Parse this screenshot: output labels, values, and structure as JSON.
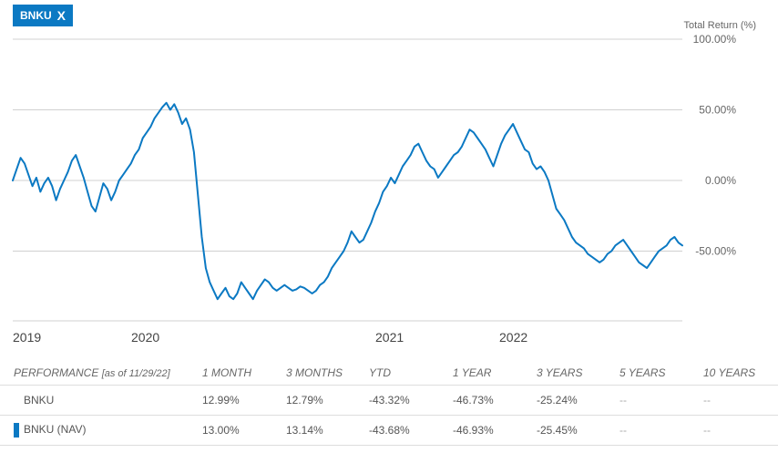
{
  "ticker": {
    "label": "BNKU",
    "close": "X"
  },
  "chart_data": {
    "type": "line",
    "ylabel": "Total Return (%)",
    "ylim": [
      -100,
      100
    ],
    "y_ticks": [
      {
        "value": 100,
        "label": "100.00%"
      },
      {
        "value": 50,
        "label": "50.00%"
      },
      {
        "value": 0,
        "label": "0.00%"
      },
      {
        "value": -50,
        "label": "-50.00%"
      }
    ],
    "x_ticks": [
      "2019",
      "2020",
      "2021",
      "2022"
    ],
    "series": [
      {
        "color": "#0b79c3",
        "values": [
          0,
          8,
          16,
          12,
          4,
          -4,
          2,
          -8,
          -2,
          2,
          -4,
          -14,
          -6,
          0,
          6,
          14,
          18,
          10,
          2,
          -8,
          -18,
          -22,
          -12,
          -2,
          -6,
          -14,
          -8,
          0,
          4,
          8,
          12,
          18,
          22,
          30,
          34,
          38,
          44,
          48,
          52,
          55,
          50,
          54,
          48,
          40,
          44,
          36,
          20,
          -10,
          -40,
          -62,
          -72,
          -78,
          -84,
          -80,
          -76,
          -82,
          -84,
          -80,
          -72,
          -76,
          -80,
          -84,
          -78,
          -74,
          -70,
          -72,
          -76,
          -78,
          -76,
          -74,
          -76,
          -78,
          -77,
          -75,
          -76,
          -78,
          -80,
          -78,
          -74,
          -72,
          -68,
          -62,
          -58,
          -54,
          -50,
          -44,
          -36,
          -40,
          -44,
          -42,
          -36,
          -30,
          -22,
          -16,
          -8,
          -4,
          2,
          -2,
          4,
          10,
          14,
          18,
          24,
          26,
          20,
          14,
          10,
          8,
          2,
          6,
          10,
          14,
          18,
          20,
          24,
          30,
          36,
          34,
          30,
          26,
          22,
          16,
          10,
          18,
          26,
          32,
          36,
          40,
          34,
          28,
          22,
          20,
          12,
          8,
          10,
          6,
          0,
          -10,
          -20,
          -24,
          -28,
          -34,
          -40,
          -44,
          -46,
          -48,
          -52,
          -54,
          -56,
          -58,
          -56,
          -52,
          -50,
          -46,
          -44,
          -42,
          -46,
          -50,
          -54,
          -58,
          -60,
          -62,
          -58,
          -54,
          -50,
          -48,
          -46,
          -42,
          -40,
          -44,
          -46
        ]
      }
    ]
  },
  "performance": {
    "header": {
      "label": "PERFORMANCE",
      "as_of": "[as of 11/29/22]",
      "cols": [
        "1 MONTH",
        "3 MONTHS",
        "YTD",
        "1 YEAR",
        "3 YEARS",
        "5 YEARS",
        "10 YEARS"
      ]
    },
    "rows": [
      {
        "name": "BNKU",
        "values": [
          "12.99%",
          "12.79%",
          "-43.32%",
          "-46.73%",
          "-25.24%",
          "--",
          "--"
        ]
      },
      {
        "name": "BNKU (NAV)",
        "values": [
          "13.00%",
          "13.14%",
          "-43.68%",
          "-46.93%",
          "-25.45%",
          "--",
          "--"
        ]
      }
    ]
  }
}
